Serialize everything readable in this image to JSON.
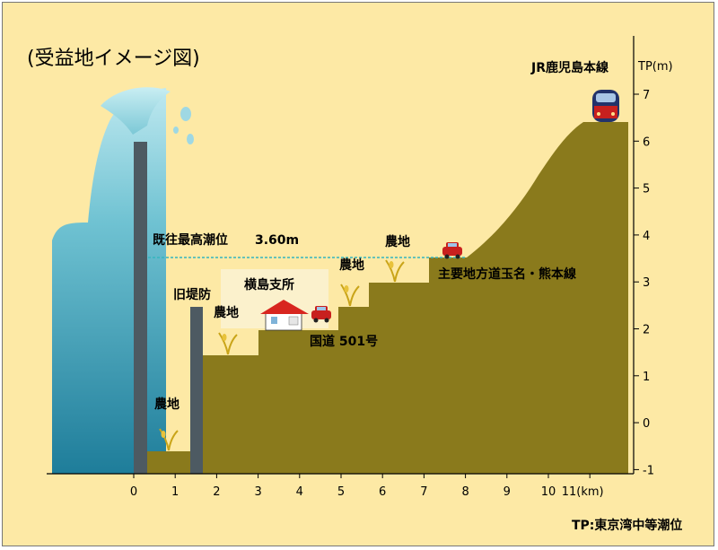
{
  "title": "(受益地イメージ図)",
  "y_axis": {
    "unit_label": "TP(m)",
    "ticks": [
      "7",
      "6",
      "5",
      "4",
      "3",
      "2",
      "1",
      "0",
      "-1"
    ]
  },
  "x_axis": {
    "ticks": [
      "0",
      "1",
      "2",
      "3",
      "4",
      "5",
      "6",
      "7",
      "8",
      "9",
      "10"
    ],
    "last_tick": "11(km)"
  },
  "labels": {
    "jr_line": "JR鹿児島本線",
    "max_tide": "既往最高潮位",
    "max_tide_value": "3.60m",
    "farm_1": "農地",
    "farm_2": "農地",
    "farm_3": "農地",
    "farm_4": "農地",
    "old_levee": "旧堤防",
    "branch_office": "横島支所",
    "national_road": "国道 501号",
    "prefectural_road": "主要地方道玉名・熊本線",
    "footnote": "TP:東京湾中等潮位"
  },
  "colors": {
    "background": "#fde9a5",
    "land": "#8a7a1c",
    "levee": "#4d5a62",
    "sea_dark": "#1e7d9a",
    "sea_light": "#bfe9f0",
    "tide_line": "#35b6bf"
  }
}
